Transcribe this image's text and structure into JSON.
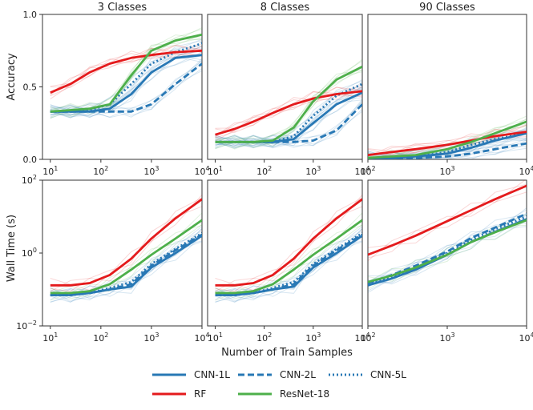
{
  "figure": {
    "xlabel": "Number of Train Samples",
    "ylabel_top": "Accuracy",
    "ylabel_bottom": "Wall Time (s)"
  },
  "chart_data": [
    {
      "type": "line",
      "row": "accuracy",
      "title": "3 Classes",
      "xscale": "log",
      "xlim": [
        7,
        10000
      ],
      "ylim": [
        0,
        1
      ],
      "xticks": [
        "10^1",
        "10^2",
        "10^3",
        "10^4"
      ],
      "yticks": [
        "0.0",
        "0.5",
        "1.0"
      ],
      "x": [
        10,
        25,
        60,
        150,
        400,
        1000,
        3000,
        10000
      ],
      "series": [
        {
          "name": "CNN-1L",
          "values": [
            0.33,
            0.33,
            0.33,
            0.35,
            0.45,
            0.6,
            0.7,
            0.72
          ]
        },
        {
          "name": "CNN-2L",
          "values": [
            0.33,
            0.33,
            0.33,
            0.33,
            0.33,
            0.38,
            0.52,
            0.66
          ]
        },
        {
          "name": "CNN-5L",
          "values": [
            0.33,
            0.33,
            0.34,
            0.38,
            0.52,
            0.66,
            0.74,
            0.8
          ]
        },
        {
          "name": "RF",
          "values": [
            0.46,
            0.52,
            0.6,
            0.66,
            0.7,
            0.72,
            0.74,
            0.75
          ]
        },
        {
          "name": "ResNet-18",
          "values": [
            0.33,
            0.34,
            0.35,
            0.38,
            0.58,
            0.75,
            0.82,
            0.86
          ]
        }
      ]
    },
    {
      "type": "line",
      "row": "accuracy",
      "title": "8 Classes",
      "xscale": "log",
      "xlim": [
        7,
        10000
      ],
      "ylim": [
        0,
        1
      ],
      "xticks": [
        "10^1",
        "10^2",
        "10^3",
        "10^4"
      ],
      "yticks": [],
      "x": [
        10,
        25,
        60,
        150,
        400,
        1000,
        3000,
        10000
      ],
      "series": [
        {
          "name": "CNN-1L",
          "values": [
            0.12,
            0.12,
            0.12,
            0.12,
            0.14,
            0.25,
            0.38,
            0.46
          ]
        },
        {
          "name": "CNN-2L",
          "values": [
            0.12,
            0.12,
            0.12,
            0.12,
            0.12,
            0.13,
            0.2,
            0.38
          ]
        },
        {
          "name": "CNN-5L",
          "values": [
            0.12,
            0.12,
            0.12,
            0.12,
            0.16,
            0.3,
            0.44,
            0.52
          ]
        },
        {
          "name": "RF",
          "values": [
            0.17,
            0.21,
            0.26,
            0.32,
            0.38,
            0.42,
            0.45,
            0.47
          ]
        },
        {
          "name": "ResNet-18",
          "values": [
            0.12,
            0.12,
            0.12,
            0.13,
            0.22,
            0.4,
            0.55,
            0.64
          ]
        }
      ]
    },
    {
      "type": "line",
      "row": "accuracy",
      "title": "90 Classes",
      "xscale": "log",
      "xlim": [
        100,
        10000
      ],
      "ylim": [
        0,
        1
      ],
      "xticks": [
        "10^2",
        "10^3",
        "10^4"
      ],
      "yticks": [],
      "x": [
        100,
        200,
        400,
        1000,
        2000,
        4000,
        10000
      ],
      "series": [
        {
          "name": "CNN-1L",
          "values": [
            0.01,
            0.01,
            0.02,
            0.04,
            0.08,
            0.13,
            0.18
          ]
        },
        {
          "name": "CNN-2L",
          "values": [
            0.01,
            0.01,
            0.01,
            0.02,
            0.04,
            0.07,
            0.11
          ]
        },
        {
          "name": "CNN-5L",
          "values": [
            0.01,
            0.01,
            0.02,
            0.05,
            0.1,
            0.14,
            0.18
          ]
        },
        {
          "name": "RF",
          "values": [
            0.03,
            0.05,
            0.07,
            0.1,
            0.13,
            0.16,
            0.19
          ]
        },
        {
          "name": "ResNet-18",
          "values": [
            0.01,
            0.02,
            0.03,
            0.07,
            0.12,
            0.18,
            0.26
          ]
        }
      ]
    },
    {
      "type": "line",
      "row": "walltime",
      "title": "",
      "xscale": "log",
      "yscale": "log",
      "xlim": [
        7,
        10000
      ],
      "ylim": [
        0.01,
        100
      ],
      "xticks": [
        "10^1",
        "10^2",
        "10^3",
        "10^4"
      ],
      "yticks": [
        "10^-2",
        "10^0",
        "10^2"
      ],
      "x": [
        10,
        25,
        60,
        150,
        400,
        1000,
        3000,
        10000
      ],
      "series": [
        {
          "name": "CNN-1L",
          "values": [
            0.07,
            0.07,
            0.08,
            0.1,
            0.12,
            0.4,
            1.0,
            3.0
          ]
        },
        {
          "name": "CNN-2L",
          "values": [
            0.07,
            0.07,
            0.08,
            0.1,
            0.14,
            0.45,
            1.2,
            3.2
          ]
        },
        {
          "name": "CNN-5L",
          "values": [
            0.07,
            0.07,
            0.08,
            0.11,
            0.16,
            0.5,
            1.3,
            3.5
          ]
        },
        {
          "name": "RF",
          "values": [
            0.13,
            0.13,
            0.15,
            0.25,
            0.7,
            2.5,
            9.0,
            30
          ]
        },
        {
          "name": "ResNet-18",
          "values": [
            0.08,
            0.08,
            0.09,
            0.14,
            0.35,
            0.9,
            2.5,
            8.0
          ]
        }
      ]
    },
    {
      "type": "line",
      "row": "walltime",
      "title": "",
      "xscale": "log",
      "yscale": "log",
      "xlim": [
        7,
        10000
      ],
      "ylim": [
        0.01,
        100
      ],
      "xticks": [
        "10^1",
        "10^2",
        "10^3",
        "10^4"
      ],
      "yticks": [],
      "x": [
        10,
        25,
        60,
        150,
        400,
        1000,
        3000,
        10000
      ],
      "series": [
        {
          "name": "CNN-1L",
          "values": [
            0.07,
            0.07,
            0.08,
            0.1,
            0.12,
            0.4,
            1.0,
            3.0
          ]
        },
        {
          "name": "CNN-2L",
          "values": [
            0.07,
            0.07,
            0.08,
            0.1,
            0.14,
            0.45,
            1.2,
            3.2
          ]
        },
        {
          "name": "CNN-5L",
          "values": [
            0.07,
            0.07,
            0.08,
            0.11,
            0.16,
            0.5,
            1.3,
            3.5
          ]
        },
        {
          "name": "RF",
          "values": [
            0.13,
            0.13,
            0.15,
            0.25,
            0.7,
            2.5,
            9.0,
            30
          ]
        },
        {
          "name": "ResNet-18",
          "values": [
            0.08,
            0.08,
            0.09,
            0.14,
            0.35,
            0.9,
            2.5,
            8.0
          ]
        }
      ]
    },
    {
      "type": "line",
      "row": "walltime",
      "title": "",
      "xscale": "log",
      "yscale": "log",
      "xlim": [
        100,
        10000
      ],
      "ylim": [
        0.01,
        100
      ],
      "xticks": [
        "10^2",
        "10^3",
        "10^4"
      ],
      "yticks": [],
      "x": [
        100,
        200,
        400,
        1000,
        2000,
        4000,
        10000
      ],
      "series": [
        {
          "name": "CNN-1L",
          "values": [
            0.13,
            0.2,
            0.35,
            0.9,
            2.0,
            3.8,
            8.5
          ]
        },
        {
          "name": "CNN-2L",
          "values": [
            0.15,
            0.25,
            0.45,
            1.1,
            2.6,
            5.0,
            12
          ]
        },
        {
          "name": "CNN-5L",
          "values": [
            0.14,
            0.23,
            0.4,
            1.0,
            2.3,
            4.5,
            10
          ]
        },
        {
          "name": "RF",
          "values": [
            0.9,
            1.6,
            3.0,
            7.5,
            15,
            30,
            70
          ]
        },
        {
          "name": "ResNet-18",
          "values": [
            0.16,
            0.24,
            0.4,
            0.9,
            2.0,
            3.7,
            8.0
          ]
        }
      ]
    }
  ],
  "styles": {
    "CNN-1L": {
      "color": "#2878b5",
      "dash": "solid"
    },
    "CNN-2L": {
      "color": "#2878b5",
      "dash": "dashed"
    },
    "CNN-5L": {
      "color": "#2878b5",
      "dash": "dotted"
    },
    "RF": {
      "color": "#e41a1c",
      "dash": "solid"
    },
    "ResNet-18": {
      "color": "#4daf4a",
      "dash": "solid"
    }
  },
  "legend": {
    "placement": "bottom-center",
    "entries": [
      "CNN-1L",
      "CNN-2L",
      "CNN-5L",
      "RF",
      "ResNet-18"
    ]
  }
}
